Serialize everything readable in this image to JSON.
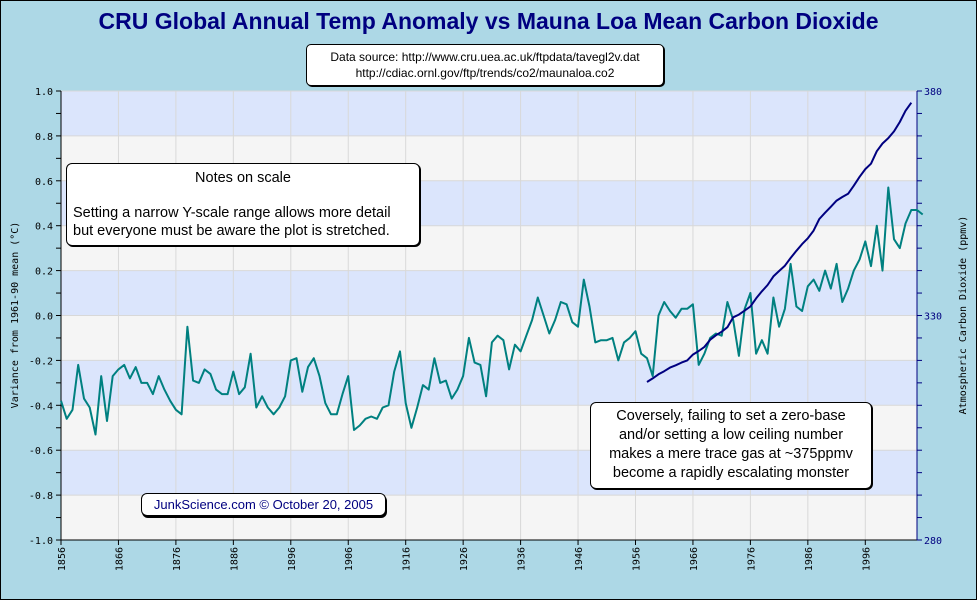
{
  "chart_data": {
    "type": "line",
    "title": "CRU Global Annual Temp Anomaly vs Mauna Loa Mean Carbon Dioxide",
    "source_lines": [
      "Data source: http://www.cru.uea.ac.uk/ftpdata/tavegl2v.dat",
      "http://cdiac.ornl.gov/ftp/trends/co2/maunaloa.co2"
    ],
    "xlabel": "",
    "ylabel": "Variance from 1961-90 mean (°C)",
    "y2label": "Atmospheric Carbon Dioxide (ppmv)",
    "xlim": [
      1856,
      2005
    ],
    "ylim": [
      -1.0,
      1.0
    ],
    "y2lim": [
      280,
      380
    ],
    "x_ticks": [
      "1856",
      "1866",
      "1876",
      "1886",
      "1896",
      "1906",
      "1916",
      "1926",
      "1936",
      "1946",
      "1956",
      "1966",
      "1976",
      "1986",
      "1996"
    ],
    "y_ticks": [
      "1.0",
      "0.8",
      "0.6",
      "0.4",
      "0.2",
      "0.0",
      "-0.2",
      "-0.4",
      "-0.6",
      "-0.8",
      "-1.0"
    ],
    "y2_ticks": [
      "380",
      "330",
      "280"
    ],
    "grid": true,
    "series": [
      {
        "name": "CRU Global Annual Temp Anomaly",
        "axis": "left",
        "color": "#008080",
        "start_year": 1856,
        "values": [
          -0.38,
          -0.46,
          -0.42,
          -0.22,
          -0.37,
          -0.41,
          -0.53,
          -0.27,
          -0.47,
          -0.27,
          -0.24,
          -0.22,
          -0.28,
          -0.23,
          -0.3,
          -0.3,
          -0.35,
          -0.27,
          -0.33,
          -0.38,
          -0.42,
          -0.44,
          -0.05,
          -0.29,
          -0.3,
          -0.24,
          -0.26,
          -0.33,
          -0.35,
          -0.35,
          -0.25,
          -0.35,
          -0.32,
          -0.17,
          -0.41,
          -0.36,
          -0.41,
          -0.44,
          -0.41,
          -0.36,
          -0.2,
          -0.19,
          -0.34,
          -0.23,
          -0.19,
          -0.27,
          -0.39,
          -0.44,
          -0.44,
          -0.35,
          -0.27,
          -0.51,
          -0.49,
          -0.46,
          -0.45,
          -0.46,
          -0.41,
          -0.4,
          -0.25,
          -0.16,
          -0.39,
          -0.5,
          -0.41,
          -0.31,
          -0.33,
          -0.19,
          -0.3,
          -0.29,
          -0.37,
          -0.33,
          -0.27,
          -0.1,
          -0.21,
          -0.22,
          -0.36,
          -0.12,
          -0.09,
          -0.11,
          -0.24,
          -0.13,
          -0.16,
          -0.09,
          -0.02,
          0.08,
          0.0,
          -0.08,
          -0.02,
          0.06,
          0.05,
          -0.03,
          -0.05,
          0.16,
          0.04,
          -0.12,
          -0.11,
          -0.11,
          -0.1,
          -0.2,
          -0.12,
          -0.1,
          -0.07,
          -0.17,
          -0.19,
          -0.27,
          0.0,
          0.06,
          0.02,
          -0.01,
          0.03,
          0.03,
          0.05,
          -0.22,
          -0.17,
          -0.1,
          -0.08,
          -0.09,
          0.06,
          -0.02,
          -0.18,
          0.03,
          0.1,
          -0.17,
          -0.11,
          -0.17,
          0.08,
          -0.05,
          0.03,
          0.23,
          0.04,
          0.02,
          0.13,
          0.16,
          0.11,
          0.2,
          0.12,
          0.23,
          0.06,
          0.12,
          0.2,
          0.25,
          0.33,
          0.22,
          0.4,
          0.2,
          0.57,
          0.34,
          0.3,
          0.41,
          0.47,
          0.47,
          0.45
        ]
      },
      {
        "name": "Mauna Loa Mean Carbon Dioxide",
        "axis": "right",
        "color": "#000080",
        "start_year": 1958,
        "values": [
          315.2,
          316.0,
          316.9,
          317.6,
          318.4,
          318.9,
          319.5,
          320.0,
          321.3,
          322.1,
          323.0,
          324.6,
          325.6,
          326.4,
          327.4,
          329.6,
          330.2,
          331.1,
          332.0,
          333.8,
          335.4,
          336.8,
          338.7,
          339.9,
          341.1,
          342.8,
          344.4,
          345.9,
          347.2,
          348.9,
          351.5,
          352.9,
          354.2,
          355.6,
          356.4,
          357.1,
          358.9,
          360.9,
          362.6,
          363.8,
          366.6,
          368.3,
          369.5,
          371.0,
          373.1,
          375.6,
          377.4
        ]
      }
    ]
  },
  "annotations": {
    "notes_title": "Notes on scale",
    "notes_line1": "Setting a narrow Y-scale range allows more detail",
    "notes_line2": "but everyone must be aware the plot is stretched.",
    "conversely_lines": [
      "Coversely, failing to set a zero-base",
      "and/or setting a low ceiling number",
      "makes a mere trace gas at ~375ppmv",
      "become a rapidly escalating monster"
    ],
    "credit": "JunkScience.com © October 20, 2005"
  },
  "colors": {
    "background": "#add8e6",
    "title": "#000080",
    "band_blue": "#dbe5fc",
    "band_gray": "#f5f5f5",
    "temp_line": "#008080",
    "co2_line": "#000080"
  }
}
